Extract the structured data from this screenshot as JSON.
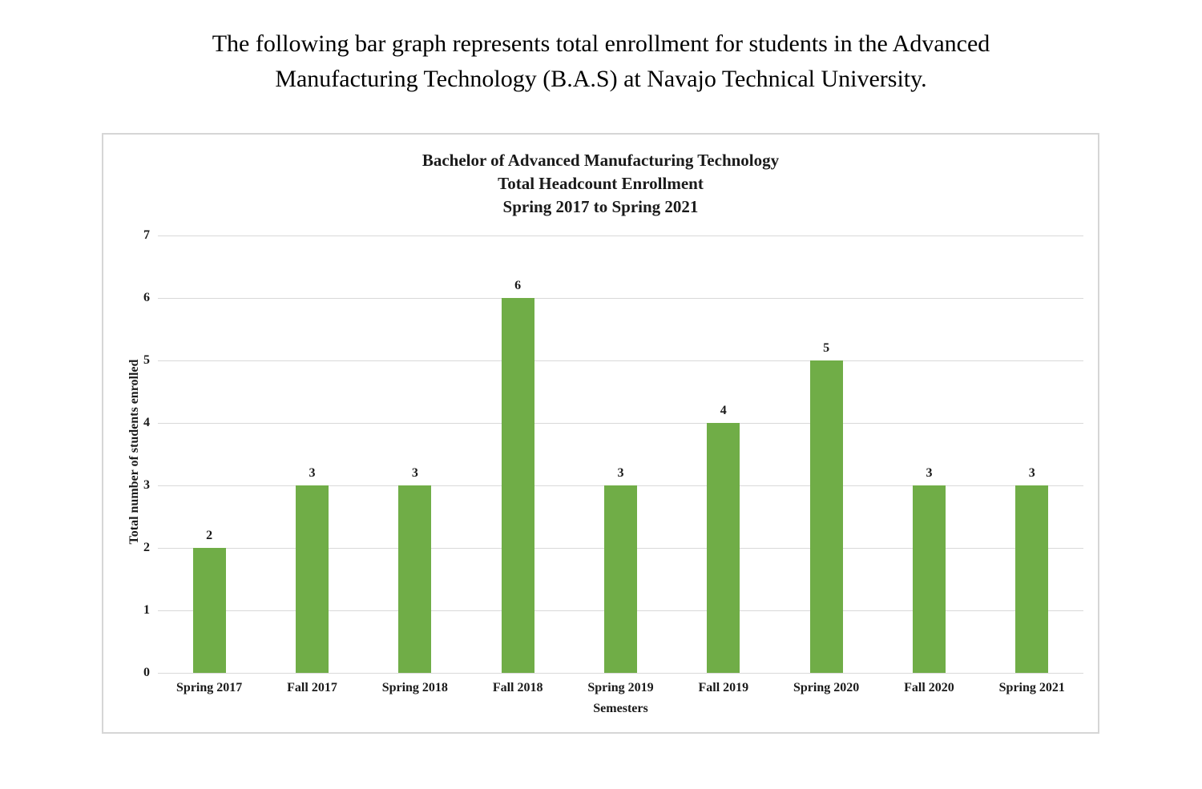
{
  "page": {
    "heading_line1": "The following bar graph represents total enrollment for students in the Advanced",
    "heading_line2": "Manufacturing Technology (B.A.S) at Navajo Technical University."
  },
  "chart": {
    "title_line1": "Bachelor of Advanced Manufacturing Technology",
    "title_line2": "Total Headcount Enrollment",
    "title_line3": "Spring 2017 to Spring 2021"
  },
  "chart_data": {
    "type": "bar",
    "title": "Bachelor of Advanced Manufacturing Technology Total Headcount Enrollment Spring 2017 to Spring 2021",
    "categories": [
      "Spring 2017",
      "Fall 2017",
      "Spring 2018",
      "Fall 2018",
      "Spring 2019",
      "Fall 2019",
      "Spring 2020",
      "Fall 2020",
      "Spring 2021"
    ],
    "values": [
      2,
      3,
      3,
      6,
      3,
      4,
      5,
      3,
      3
    ],
    "xlabel": "Semesters",
    "ylabel": "Total number of students enrolled",
    "ylim": [
      0,
      7
    ],
    "yticks": [
      0,
      1,
      2,
      3,
      4,
      5,
      6,
      7
    ],
    "grid": "horizontal",
    "legend": "none",
    "data_labels": true,
    "colors": {
      "bar_fill": "#70AD47",
      "gridline": "#D9D9D9",
      "frame_border": "#D6D6D6",
      "text": "#1A1A1A"
    }
  }
}
